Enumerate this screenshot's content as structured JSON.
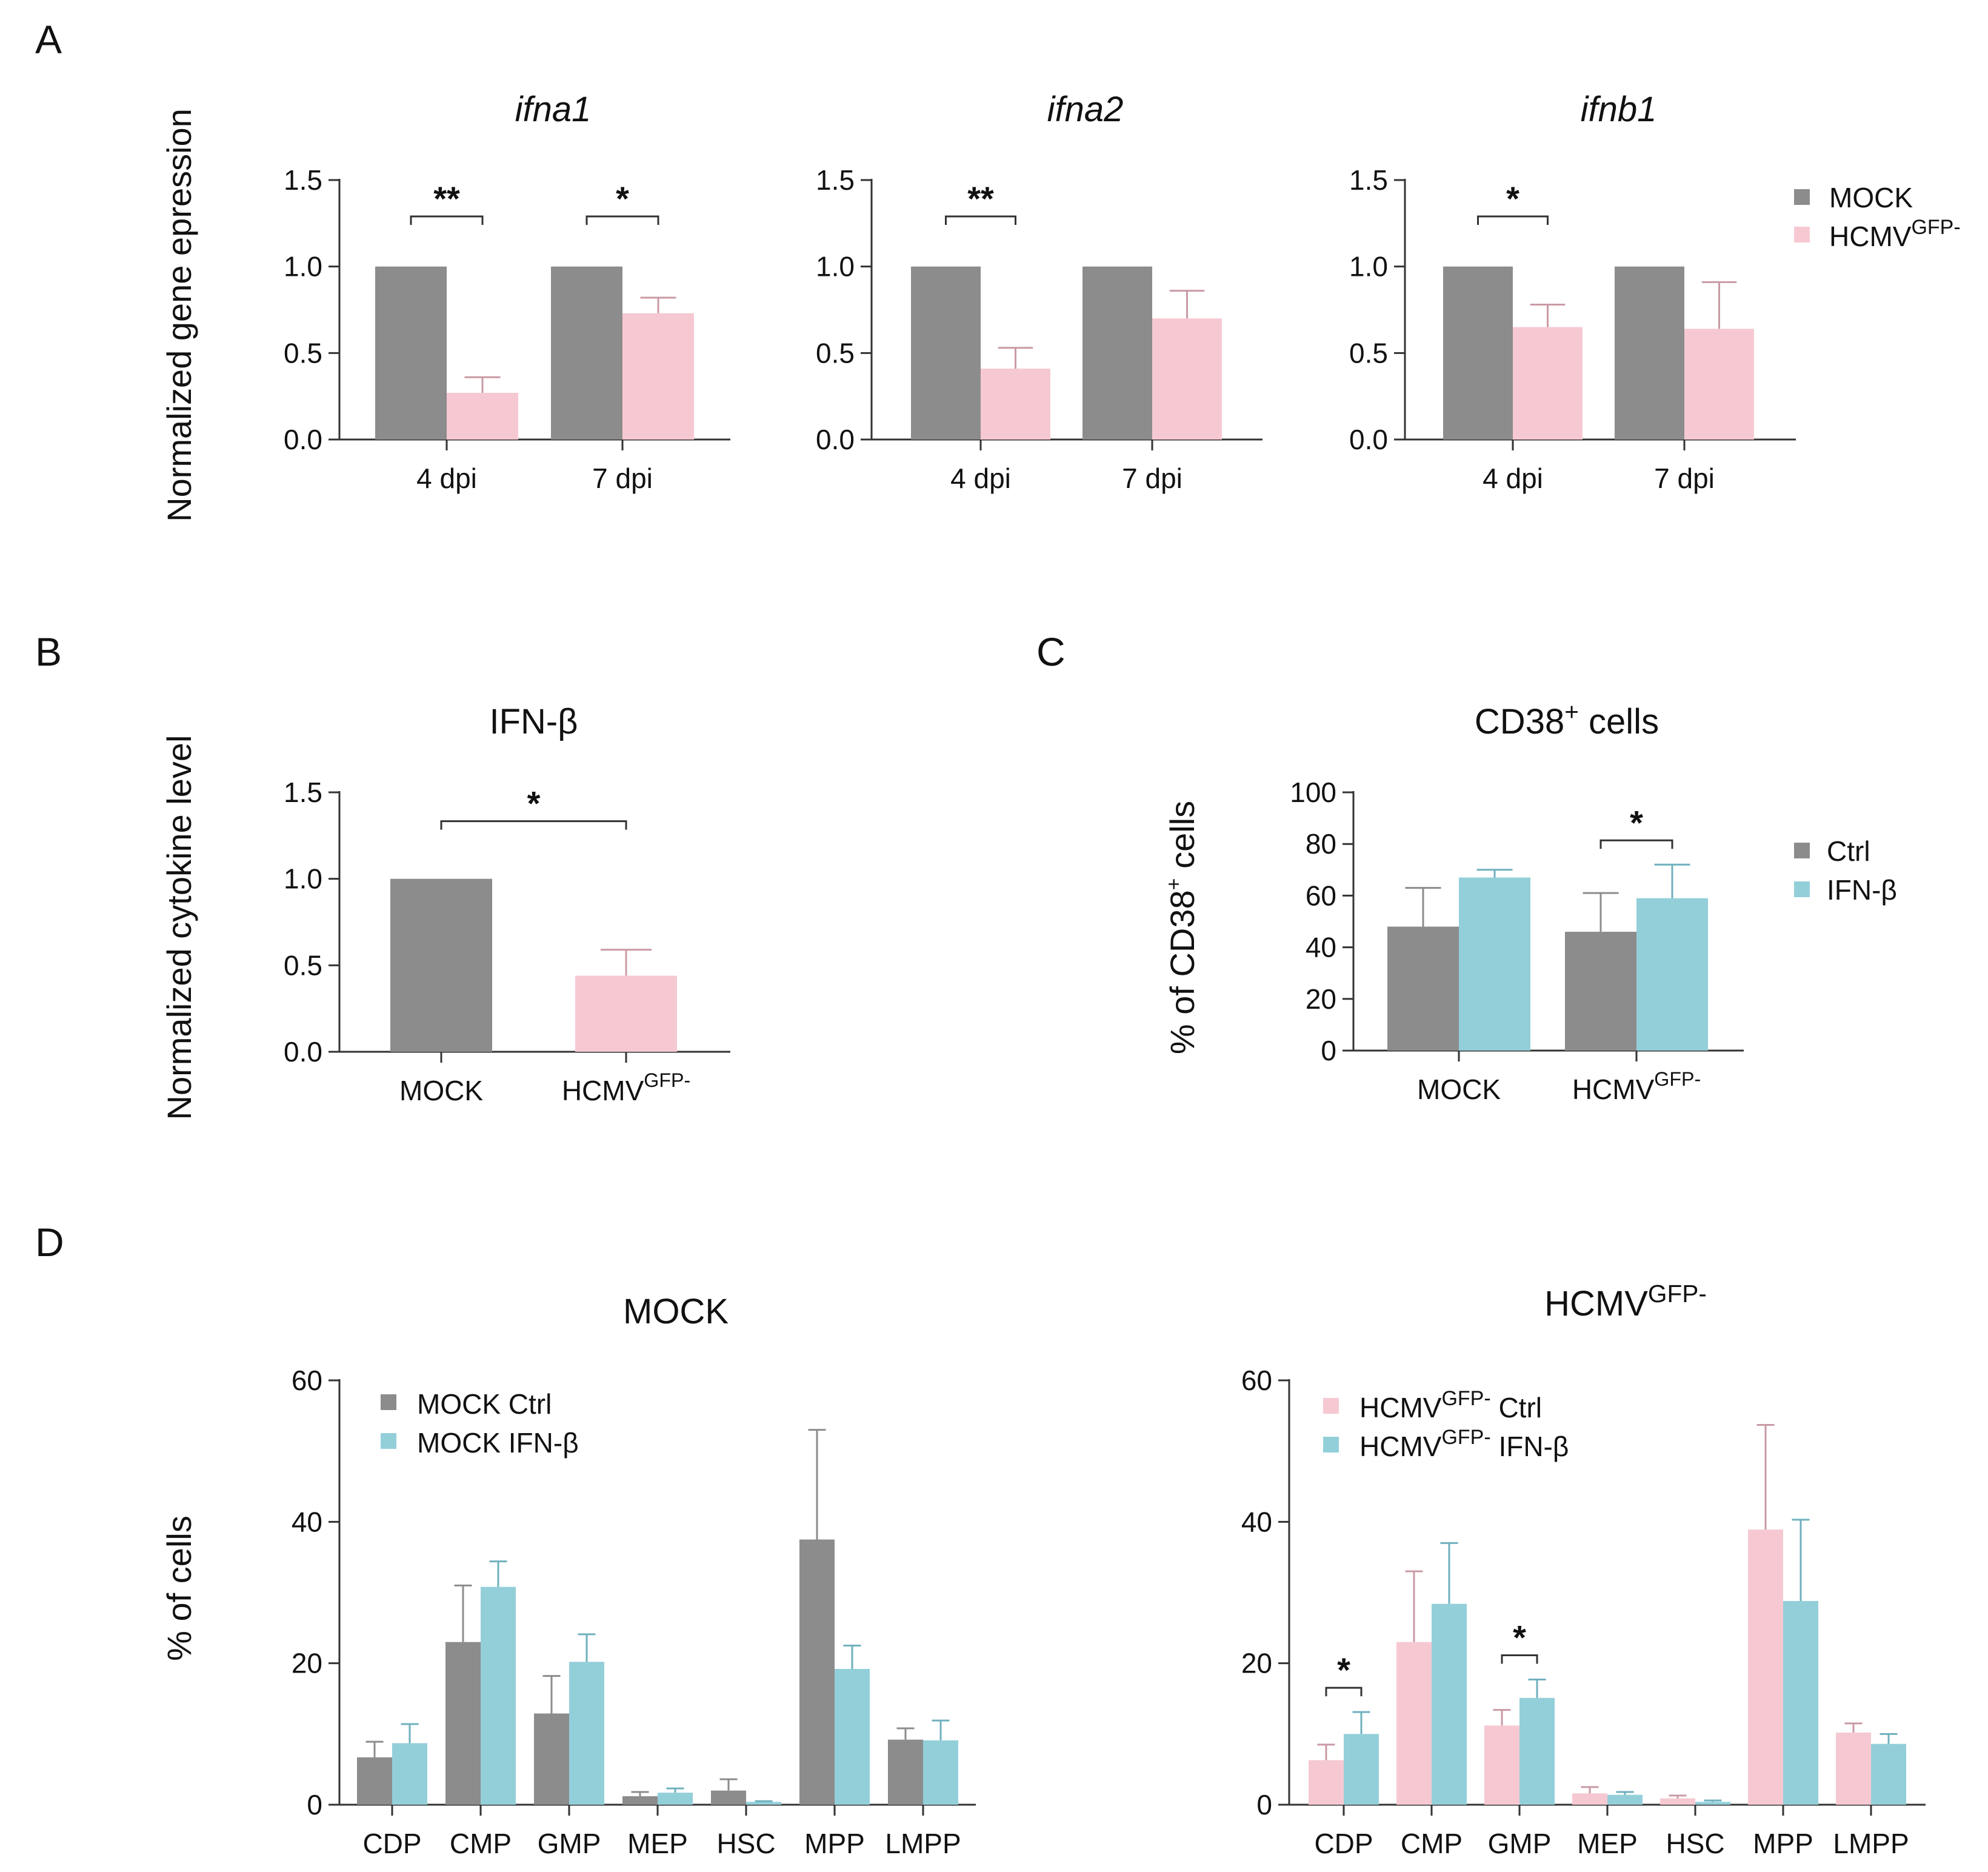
{
  "colors": {
    "mock": "#8c8c8c",
    "hcmv": "#f6c9d2",
    "ifn": "#93cfd9",
    "axis": "#333333",
    "err_mock": "#8c8c8c",
    "err_hcmv": "#c99aa4",
    "err_ifn": "#6fb0be"
  },
  "panel_labels": {
    "a": "A",
    "b": "B",
    "c": "C",
    "d": "D"
  },
  "panel_a": {
    "ylabel": "Normalized gene epression",
    "legend": {
      "mock": "MOCK",
      "hcmv_base": "HCMV",
      "hcmv_sup": "GFP-"
    }
  },
  "panel_b": {
    "ylabel": "Normalized cytokine level"
  },
  "panel_c": {
    "ylabel_base": "% of CD38",
    "ylabel_sup": "+",
    "ylabel_end": " cells",
    "legend": {
      "ctrl": "Ctrl",
      "ifn": "IFN-β"
    }
  },
  "panel_d": {
    "ylabel": "% of cells"
  },
  "chart_data": [
    {
      "id": "A1",
      "type": "bar",
      "title": "ifna1",
      "categories": [
        "4 dpi",
        "7 dpi"
      ],
      "ylim": [
        0,
        1.5
      ],
      "yticks": [
        "0.0",
        "0.5",
        "1.0",
        "1.5"
      ],
      "series": [
        {
          "name": "MOCK",
          "values": [
            1.0,
            1.0
          ],
          "errors": [
            0,
            0
          ]
        },
        {
          "name": "HCMVGFP-",
          "values": [
            0.27,
            0.73
          ],
          "errors": [
            0.09,
            0.09
          ]
        }
      ],
      "significance": [
        {
          "category": "4 dpi",
          "label": "**"
        },
        {
          "category": "7 dpi",
          "label": "*"
        }
      ]
    },
    {
      "id": "A2",
      "type": "bar",
      "title": "ifna2",
      "categories": [
        "4 dpi",
        "7 dpi"
      ],
      "ylim": [
        0,
        1.5
      ],
      "yticks": [
        "0.0",
        "0.5",
        "1.0",
        "1.5"
      ],
      "series": [
        {
          "name": "MOCK",
          "values": [
            1.0,
            1.0
          ],
          "errors": [
            0,
            0
          ]
        },
        {
          "name": "HCMVGFP-",
          "values": [
            0.41,
            0.7
          ],
          "errors": [
            0.12,
            0.16
          ]
        }
      ],
      "significance": [
        {
          "category": "4 dpi",
          "label": "**"
        }
      ]
    },
    {
      "id": "A3",
      "type": "bar",
      "title": "ifnb1",
      "categories": [
        "4 dpi",
        "7 dpi"
      ],
      "ylim": [
        0,
        1.5
      ],
      "yticks": [
        "0.0",
        "0.5",
        "1.0",
        "1.5"
      ],
      "series": [
        {
          "name": "MOCK",
          "values": [
            1.0,
            1.0
          ],
          "errors": [
            0,
            0
          ]
        },
        {
          "name": "HCMVGFP-",
          "values": [
            0.65,
            0.64
          ],
          "errors": [
            0.13,
            0.27
          ]
        }
      ],
      "significance": [
        {
          "category": "4 dpi",
          "label": "*"
        }
      ]
    },
    {
      "id": "B",
      "type": "bar",
      "title": "IFN-β",
      "categories": [
        "MOCK",
        "HCMVGFP-"
      ],
      "ylim": [
        0,
        1.5
      ],
      "yticks": [
        "0.0",
        "0.5",
        "1.0",
        "1.5"
      ],
      "series": [
        {
          "name": "value",
          "values": [
            1.0,
            0.44
          ],
          "errors": [
            0,
            0.15
          ]
        }
      ],
      "significance": [
        {
          "between": [
            "MOCK",
            "HCMVGFP-"
          ],
          "label": "*"
        }
      ]
    },
    {
      "id": "C",
      "type": "bar",
      "title": "CD38+ cells",
      "categories": [
        "MOCK",
        "HCMVGFP-"
      ],
      "ylim": [
        0,
        100
      ],
      "yticks": [
        "0",
        "20",
        "40",
        "60",
        "80",
        "100"
      ],
      "series": [
        {
          "name": "Ctrl",
          "values": [
            48,
            46
          ],
          "errors": [
            15,
            15
          ]
        },
        {
          "name": "IFN-β",
          "values": [
            67,
            59
          ],
          "errors": [
            3,
            13
          ]
        }
      ],
      "significance": [
        {
          "category": "HCMVGFP-",
          "label": "*"
        }
      ]
    },
    {
      "id": "D1",
      "type": "bar",
      "title": "MOCK",
      "categories": [
        "CDP",
        "CMP",
        "GMP",
        "MEP",
        "HSC",
        "MPP",
        "LMPP"
      ],
      "ylim": [
        0,
        60
      ],
      "yticks": [
        "0",
        "20",
        "40",
        "60"
      ],
      "series": [
        {
          "name": "MOCK Ctrl",
          "values": [
            6.7,
            23,
            12.9,
            1.2,
            2.0,
            37.5,
            9.2
          ],
          "errors": [
            2.2,
            8,
            5.3,
            0.6,
            1.6,
            15.5,
            1.6
          ]
        },
        {
          "name": "MOCK IFN-β",
          "values": [
            8.7,
            30.8,
            20.2,
            1.7,
            0.4,
            19.2,
            9.1
          ],
          "errors": [
            2.7,
            3.6,
            3.9,
            0.6,
            0.1,
            3.3,
            2.8
          ]
        }
      ],
      "significance": []
    },
    {
      "id": "D2",
      "type": "bar",
      "title": "HCMVGFP-",
      "categories": [
        "CDP",
        "CMP",
        "GMP",
        "MEP",
        "HSC",
        "MPP",
        "LMPP"
      ],
      "ylim": [
        0,
        60
      ],
      "yticks": [
        "0",
        "20",
        "40",
        "60"
      ],
      "series": [
        {
          "name": "HCMVGFP- Ctrl",
          "values": [
            6.3,
            23,
            11.2,
            1.6,
            0.9,
            38.9,
            10.2
          ],
          "errors": [
            2.2,
            10,
            2.2,
            0.9,
            0.4,
            14.8,
            1.3
          ]
        },
        {
          "name": "HCMVGFP- IFN-β",
          "values": [
            10,
            28.4,
            15.1,
            1.4,
            0.4,
            28.8,
            8.6
          ],
          "errors": [
            3.1,
            8.6,
            2.6,
            0.4,
            0.2,
            11.5,
            1.4
          ]
        }
      ],
      "significance": [
        {
          "category": "CDP",
          "label": "*"
        },
        {
          "category": "GMP",
          "label": "*"
        }
      ]
    }
  ],
  "legend_d1": [
    "MOCK Ctrl",
    "MOCK IFN-β"
  ],
  "legend_d2": [
    {
      "base": "HCMV",
      "sup": "GFP-",
      "rest": " Ctrl"
    },
    {
      "base": "HCMV",
      "sup": "GFP-",
      "rest": " IFN-β"
    }
  ],
  "superscript_labels": {
    "HCMVGFP-": {
      "base": "HCMV",
      "sup": "GFP-"
    },
    "CD38+ cells": {
      "base": "CD38",
      "sup": "+",
      "rest": " cells"
    }
  }
}
